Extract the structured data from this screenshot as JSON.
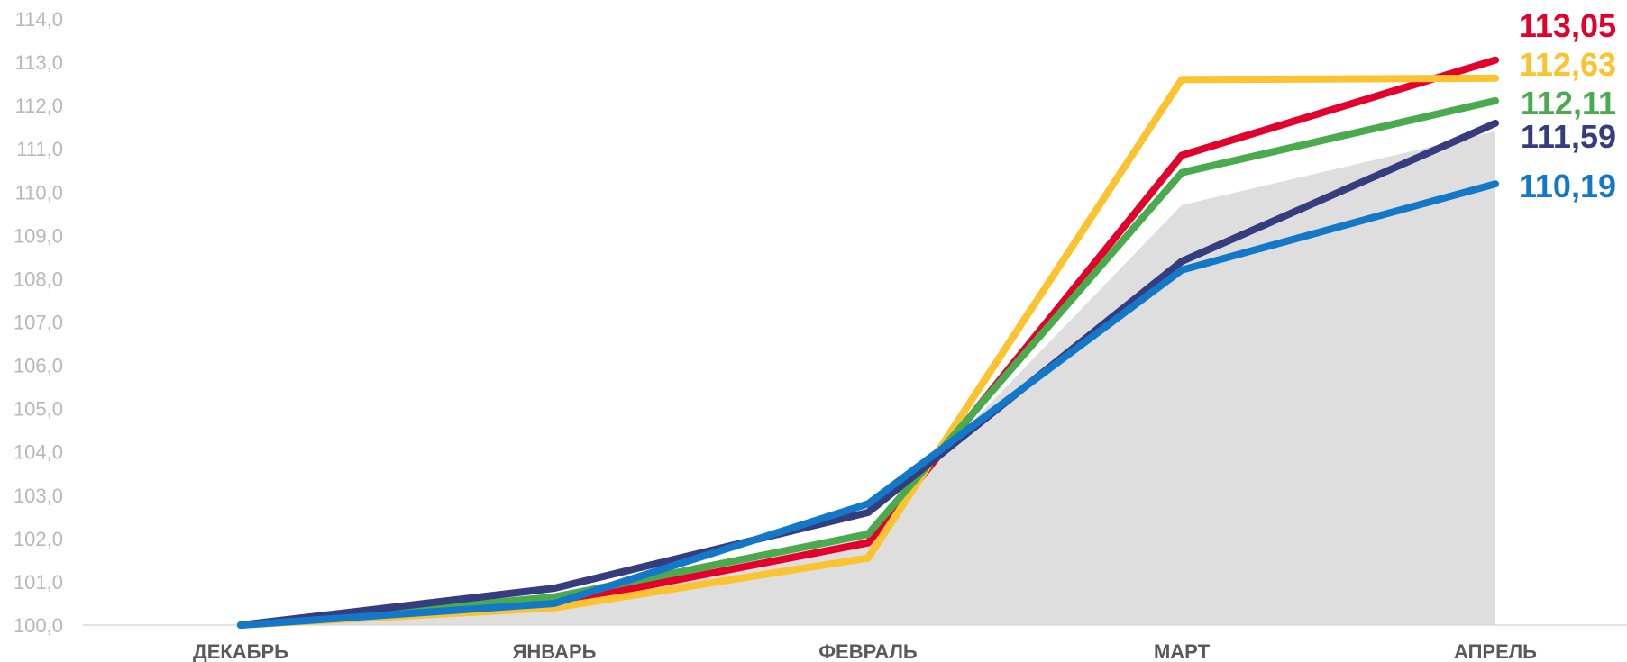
{
  "chart_data": {
    "type": "line",
    "title": "",
    "xlabel": "",
    "ylabel": "",
    "categories": [
      "ДЕКАБРЬ",
      "ЯНВАРЬ",
      "ФЕВРАЛЬ",
      "МАРТ",
      "АПРЕЛЬ"
    ],
    "ylim": [
      100,
      114
    ],
    "y_ticks": [
      "100,0",
      "101,0",
      "102,0",
      "103,0",
      "104,0",
      "105,0",
      "106,0",
      "107,0",
      "108,0",
      "109,0",
      "110,0",
      "111,0",
      "112,0",
      "113,0",
      "114,0"
    ],
    "grid": false,
    "area": {
      "color": "#dedede",
      "values": [
        100.0,
        100.5,
        102.2,
        109.7,
        111.4
      ]
    },
    "series": [
      {
        "color": "#e3002b",
        "values": [
          100.0,
          100.5,
          101.9,
          110.85,
          113.05
        ],
        "end_label": "113,05"
      },
      {
        "color": "#fcc331",
        "values": [
          100.0,
          100.4,
          101.55,
          112.6,
          112.63
        ],
        "end_label": "112,63"
      },
      {
        "color": "#4aaa4e",
        "values": [
          100.0,
          100.65,
          102.1,
          110.45,
          112.11
        ],
        "end_label": "112,11"
      },
      {
        "color": "#363d7e",
        "values": [
          100.0,
          100.85,
          102.6,
          108.4,
          111.59
        ],
        "end_label": "111,59"
      },
      {
        "color": "#1478c8",
        "values": [
          100.0,
          100.5,
          102.8,
          108.2,
          110.19
        ],
        "end_label": "110,19"
      }
    ]
  }
}
